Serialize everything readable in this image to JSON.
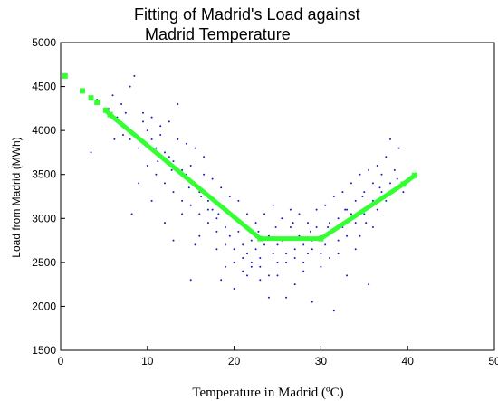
{
  "chart_data": {
    "type": "scatter",
    "title_lines": [
      "Fitting of Madrid's Load against",
      "Madrid Temperature"
    ],
    "xlabel": "Temperature in Madrid (ºC)",
    "ylabel": "Load from Madrid (MWh)",
    "xlim": [
      0,
      50
    ],
    "ylim": [
      1500,
      5000
    ],
    "xticks": [
      0,
      10,
      20,
      30,
      40,
      50
    ],
    "yticks": [
      1500,
      2000,
      2500,
      3000,
      3500,
      4000,
      4500,
      5000
    ],
    "grid": false,
    "legend": "none",
    "colors": {
      "observed": "#1a1acc",
      "fit": "#33ff33"
    },
    "series": [
      {
        "mark": "scatter",
        "points": [
          [
            4.2,
            4350
          ],
          [
            5.5,
            4250
          ],
          [
            6.0,
            4400
          ],
          [
            6.5,
            4150
          ],
          [
            7.0,
            4300
          ],
          [
            7.5,
            4200
          ],
          [
            8.0,
            4500
          ],
          [
            8.5,
            4620
          ],
          [
            8.2,
            3050
          ],
          [
            9.0,
            3400
          ],
          [
            9.5,
            4100
          ],
          [
            10.0,
            4000
          ],
          [
            10.5,
            3900
          ],
          [
            11.0,
            3800
          ],
          [
            11.5,
            3950
          ],
          [
            12.0,
            3750
          ],
          [
            12.5,
            3700
          ],
          [
            13.0,
            3650
          ],
          [
            13.5,
            4300
          ],
          [
            14.0,
            3550
          ],
          [
            14.5,
            3500
          ],
          [
            15.0,
            3600
          ],
          [
            15.5,
            3400
          ],
          [
            16.0,
            3300
          ],
          [
            16.5,
            3700
          ],
          [
            17.0,
            3200
          ],
          [
            17.5,
            3100
          ],
          [
            18.0,
            3000
          ],
          [
            18.5,
            3150
          ],
          [
            19.0,
            2900
          ],
          [
            19.5,
            2800
          ],
          [
            20.0,
            3000
          ],
          [
            20.5,
            2850
          ],
          [
            21.0,
            2700
          ],
          [
            21.5,
            2600
          ],
          [
            22.0,
            2750
          ],
          [
            22.5,
            2650
          ],
          [
            23.0,
            2550
          ],
          [
            23.5,
            2700
          ],
          [
            24.0,
            2800
          ],
          [
            24.5,
            2600
          ],
          [
            25.0,
            2700
          ],
          [
            25.5,
            2750
          ],
          [
            26.0,
            2500
          ],
          [
            26.5,
            2900
          ],
          [
            27.0,
            2650
          ],
          [
            27.5,
            2800
          ],
          [
            28.0,
            2700
          ],
          [
            28.5,
            2600
          ],
          [
            29.0,
            2750
          ],
          [
            29.5,
            2900
          ],
          [
            30.0,
            2800
          ],
          [
            30.5,
            2700
          ],
          [
            31.0,
            2950
          ],
          [
            31.5,
            2850
          ],
          [
            32.0,
            3000
          ],
          [
            32.5,
            2900
          ],
          [
            33.0,
            3100
          ],
          [
            33.5,
            3050
          ],
          [
            34.0,
            3200
          ],
          [
            34.5,
            2800
          ],
          [
            35.0,
            3300
          ],
          [
            35.5,
            3150
          ],
          [
            36.0,
            3400
          ],
          [
            36.5,
            3600
          ],
          [
            37.0,
            3500
          ],
          [
            37.5,
            3700
          ],
          [
            38.0,
            3900
          ],
          [
            38.5,
            3550
          ],
          [
            39.0,
            3800
          ],
          [
            15.0,
            2300
          ],
          [
            18.5,
            2300
          ],
          [
            20.0,
            2200
          ],
          [
            21.5,
            2350
          ],
          [
            24.0,
            2100
          ],
          [
            26.0,
            2100
          ],
          [
            29.0,
            2050
          ],
          [
            31.5,
            1950
          ],
          [
            33.0,
            2350
          ],
          [
            35.5,
            2250
          ],
          [
            10.5,
            3200
          ],
          [
            12.0,
            2950
          ],
          [
            13.0,
            2750
          ],
          [
            14.0,
            3050
          ],
          [
            15.5,
            2700
          ],
          [
            16.0,
            2800
          ],
          [
            17.0,
            3100
          ],
          [
            18.0,
            2650
          ],
          [
            19.0,
            2450
          ],
          [
            20.0,
            2500
          ],
          [
            21.0,
            2400
          ],
          [
            22.0,
            2450
          ],
          [
            23.0,
            2300
          ],
          [
            25.0,
            2350
          ],
          [
            27.0,
            2250
          ],
          [
            28.0,
            2400
          ],
          [
            30.0,
            2450
          ],
          [
            32.0,
            2600
          ],
          [
            34.0,
            2650
          ],
          [
            36.0,
            2900
          ],
          [
            9.0,
            3800
          ],
          [
            10.0,
            3600
          ],
          [
            11.0,
            3500
          ],
          [
            12.0,
            3400
          ],
          [
            13.0,
            3300
          ],
          [
            14.0,
            3200
          ],
          [
            15.0,
            3150
          ],
          [
            16.0,
            3050
          ],
          [
            17.0,
            2950
          ],
          [
            18.0,
            2850
          ],
          [
            19.0,
            2700
          ],
          [
            20.0,
            2650
          ],
          [
            21.0,
            2550
          ],
          [
            22.0,
            2500
          ],
          [
            23.0,
            2450
          ],
          [
            24.0,
            2350
          ],
          [
            25.0,
            2500
          ],
          [
            26.0,
            2600
          ],
          [
            27.0,
            2550
          ],
          [
            28.0,
            2500
          ],
          [
            29.0,
            2650
          ],
          [
            30.0,
            2600
          ],
          [
            31.0,
            2550
          ],
          [
            32.0,
            2750
          ],
          [
            33.0,
            2800
          ],
          [
            34.0,
            2950
          ],
          [
            35.0,
            3050
          ],
          [
            36.0,
            3200
          ],
          [
            37.0,
            3300
          ],
          [
            38.0,
            3400
          ],
          [
            8.0,
            3900
          ],
          [
            9.5,
            4200
          ],
          [
            10.5,
            4150
          ],
          [
            11.5,
            4050
          ],
          [
            12.5,
            4100
          ],
          [
            13.5,
            3900
          ],
          [
            14.5,
            3850
          ],
          [
            15.5,
            3800
          ],
          [
            16.5,
            3500
          ],
          [
            17.5,
            3450
          ],
          [
            18.5,
            3350
          ],
          [
            19.5,
            3250
          ],
          [
            20.5,
            3200
          ],
          [
            21.5,
            3050
          ],
          [
            22.5,
            2950
          ],
          [
            23.5,
            3050
          ],
          [
            24.5,
            3150
          ],
          [
            25.5,
            3000
          ],
          [
            26.5,
            3100
          ],
          [
            27.5,
            3050
          ],
          [
            28.5,
            2950
          ],
          [
            29.5,
            3100
          ],
          [
            30.5,
            3150
          ],
          [
            31.5,
            3250
          ],
          [
            32.5,
            3300
          ],
          [
            33.5,
            3400
          ],
          [
            34.5,
            3500
          ],
          [
            35.5,
            3550
          ],
          [
            36.5,
            3100
          ],
          [
            37.5,
            3200
          ],
          [
            3.5,
            3750
          ],
          [
            6.2,
            3900
          ],
          [
            7.2,
            3950
          ],
          [
            11.2,
            3650
          ],
          [
            12.8,
            3550
          ],
          [
            14.8,
            3350
          ],
          [
            16.2,
            3250
          ],
          [
            18.2,
            3050
          ],
          [
            20.8,
            2950
          ],
          [
            22.8,
            2850
          ],
          [
            24.8,
            2900
          ],
          [
            26.8,
            2950
          ],
          [
            28.8,
            2850
          ],
          [
            30.8,
            2900
          ],
          [
            32.8,
            3100
          ],
          [
            34.8,
            3250
          ],
          [
            36.8,
            3350
          ],
          [
            38.8,
            3450
          ],
          [
            39.5,
            3300
          ],
          [
            35.2,
            2950
          ]
        ]
      },
      {
        "mark": "line",
        "x": [
          0.5,
          2.5,
          3.5,
          4.2,
          5.2,
          5.7,
          23,
          30,
          39.5,
          40.8
        ],
        "y": [
          4620,
          4450,
          4370,
          4320,
          4230,
          4180,
          2770,
          2770,
          3390,
          3490
        ]
      }
    ]
  }
}
